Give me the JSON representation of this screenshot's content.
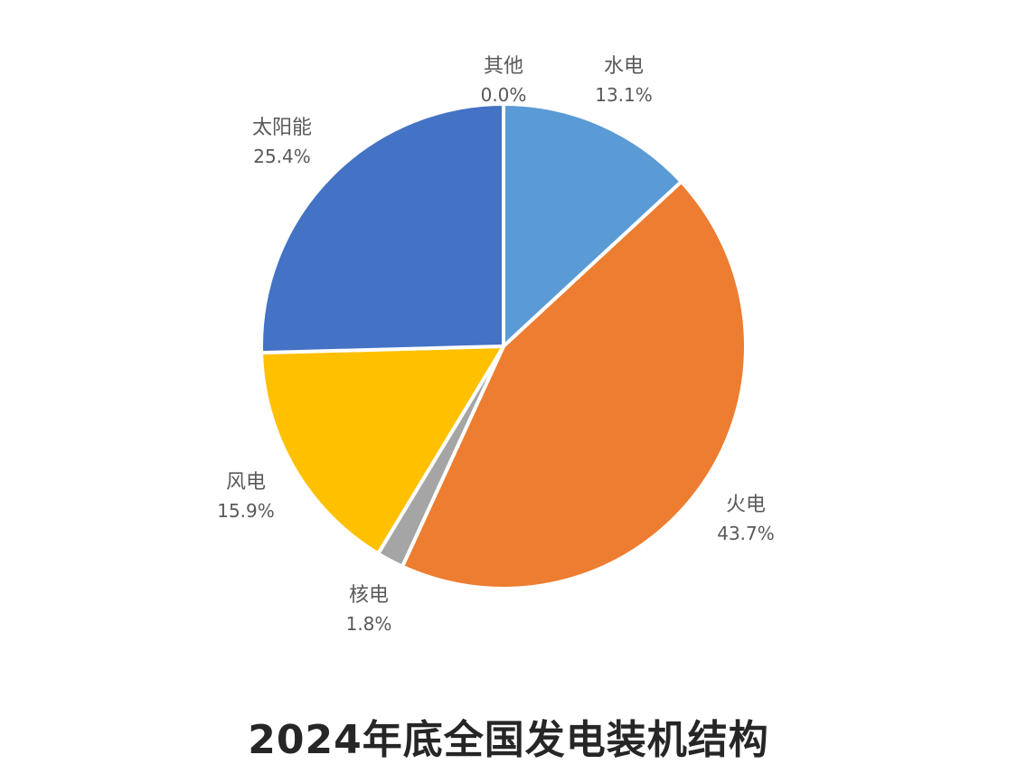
{
  "chart_data": {
    "type": "pie",
    "title": "2024年底全国发电装机结构",
    "start_angle_deg": 0,
    "direction": "clockwise",
    "slices": [
      {
        "label": "水电",
        "value": 13.1,
        "value_label": "13.1%",
        "color": "#5B9BD5"
      },
      {
        "label": "火电",
        "value": 43.7,
        "value_label": "43.7%",
        "color": "#ED7D31"
      },
      {
        "label": "核电",
        "value": 1.8,
        "value_label": "1.8%",
        "color": "#A5A5A5"
      },
      {
        "label": "风电",
        "value": 15.9,
        "value_label": "15.9%",
        "color": "#FFC000"
      },
      {
        "label": "太阳能",
        "value": 25.4,
        "value_label": "25.4%",
        "color": "#4472C4"
      },
      {
        "label": "其他",
        "value": 0.0,
        "value_label": "0.0%",
        "color": "#70AD47"
      }
    ]
  }
}
